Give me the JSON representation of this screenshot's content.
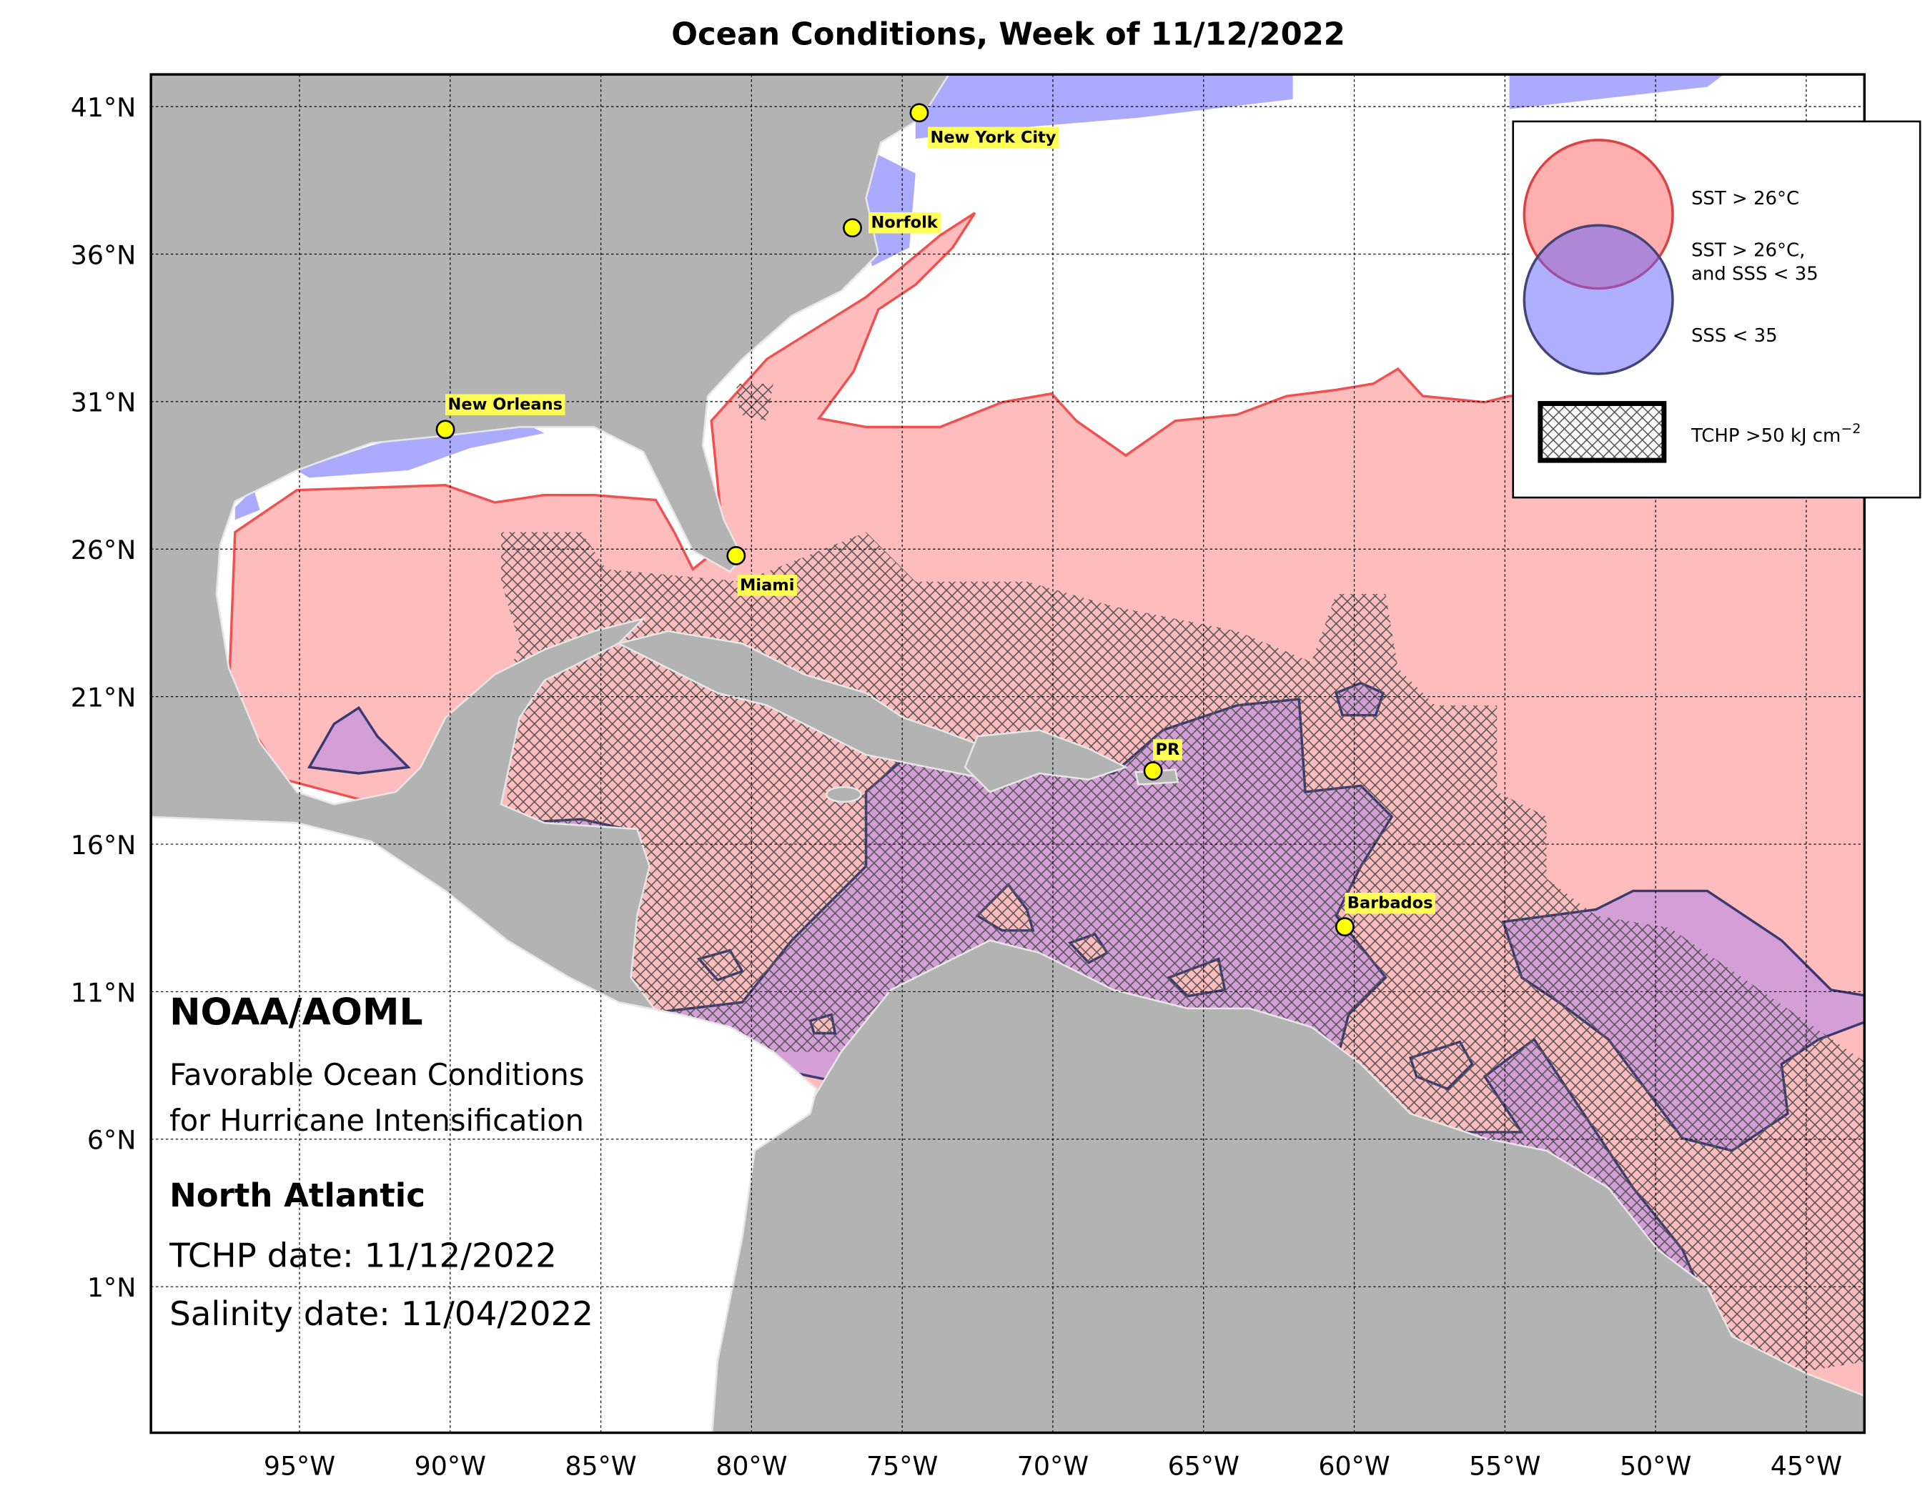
{
  "title": "Ocean Conditions, Week of 11/12/2022",
  "map": {
    "lat_ticks": [
      {
        "value": 41,
        "label": "41°N"
      },
      {
        "value": 36,
        "label": "36°N"
      },
      {
        "value": 31,
        "label": "31°N"
      },
      {
        "value": 26,
        "label": "26°N"
      },
      {
        "value": 21,
        "label": "21°N"
      },
      {
        "value": 16,
        "label": "16°N"
      },
      {
        "value": 11,
        "label": "11°N"
      },
      {
        "value": 6,
        "label": "6°N"
      },
      {
        "value": 1,
        "label": "1°N"
      }
    ],
    "lon_ticks": [
      {
        "value": -95,
        "label": "95°W"
      },
      {
        "value": -90,
        "label": "90°W"
      },
      {
        "value": -85,
        "label": "85°W"
      },
      {
        "value": -80,
        "label": "80°W"
      },
      {
        "value": -75,
        "label": "75°W"
      },
      {
        "value": -70,
        "label": "70°W"
      },
      {
        "value": -65,
        "label": "65°W"
      },
      {
        "value": -60,
        "label": "60°W"
      },
      {
        "value": -55,
        "label": "55°W"
      },
      {
        "value": -50,
        "label": "50°W"
      },
      {
        "value": -45,
        "label": "45°W"
      }
    ],
    "cities": [
      "New York City",
      "Norfolk",
      "New Orleans",
      "Miami",
      "PR",
      "Barbados"
    ]
  },
  "legend": {
    "sst": "SST > 26°C",
    "both": [
      "SST > 26°C,",
      "and SSS < 35"
    ],
    "sss": "SSS < 35",
    "tchp": {
      "text": "TCHP >50 kJ cm",
      "superscript": "−2"
    }
  },
  "info": {
    "org": "NOAA/AOML",
    "description": [
      "Favorable Ocean Conditions",
      "for Hurricane Intensification"
    ],
    "region": "North Atlantic",
    "tchp_date": "TCHP date: 11/12/2022",
    "salinity_date": "Salinity date: 11/04/2022"
  }
}
